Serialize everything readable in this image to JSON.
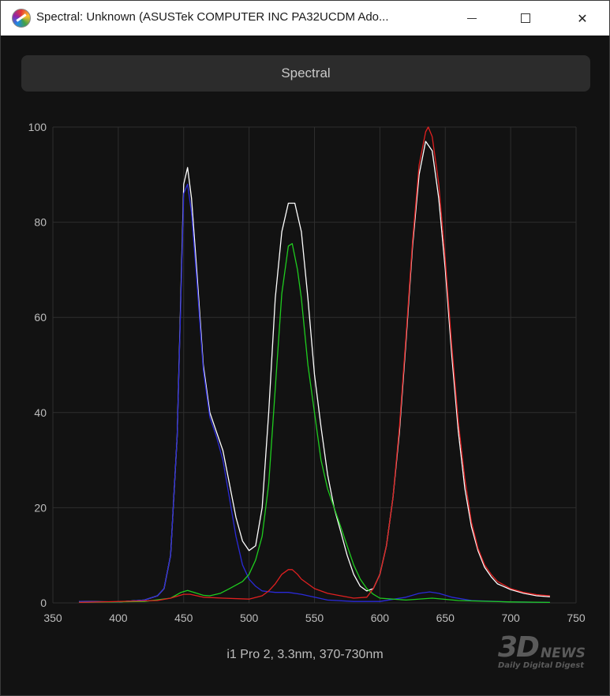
{
  "window": {
    "title": "Spectral: Unknown (ASUSTek COMPUTER INC PA32UCDM Ado...",
    "icon": "spectrum-app-icon",
    "controls": {
      "minimize_icon": "minimize-icon",
      "maximize_icon": "maximize-icon",
      "close_icon": "close-icon",
      "close_glyph": "✕"
    }
  },
  "mode_button": {
    "label": "Spectral"
  },
  "caption": "i1 Pro 2, 3.3nm, 370-730nm",
  "watermark": {
    "main": "3D",
    "news": "NEWS",
    "sub": "Daily Digital Digest"
  },
  "colors": {
    "background": "#121212",
    "grid": "#2e2e2e",
    "white": "#ffffff",
    "red": "#e02020",
    "green": "#1fcc1f",
    "blue": "#2a2ad8"
  },
  "chart_data": {
    "type": "line",
    "title": "",
    "xlabel": "",
    "ylabel": "",
    "xlim": [
      350,
      750
    ],
    "ylim": [
      0,
      100
    ],
    "x_ticks": [
      350,
      400,
      450,
      500,
      550,
      600,
      650,
      700,
      750
    ],
    "y_ticks": [
      0,
      20,
      40,
      60,
      80,
      100
    ],
    "grid": true,
    "legend": "none",
    "series": [
      {
        "color": "#ffffff",
        "points": [
          [
            370,
            0.3
          ],
          [
            400,
            0.2
          ],
          [
            420,
            0.6
          ],
          [
            430,
            1.5
          ],
          [
            435,
            3
          ],
          [
            440,
            10
          ],
          [
            445,
            35
          ],
          [
            450,
            88
          ],
          [
            453,
            91.5
          ],
          [
            456,
            85
          ],
          [
            460,
            70
          ],
          [
            465,
            50
          ],
          [
            470,
            40
          ],
          [
            475,
            36
          ],
          [
            480,
            32
          ],
          [
            485,
            25
          ],
          [
            490,
            18
          ],
          [
            495,
            13
          ],
          [
            500,
            11
          ],
          [
            505,
            12
          ],
          [
            510,
            20
          ],
          [
            515,
            40
          ],
          [
            520,
            64
          ],
          [
            525,
            78
          ],
          [
            530,
            84
          ],
          [
            535,
            84
          ],
          [
            540,
            78
          ],
          [
            545,
            64
          ],
          [
            550,
            48
          ],
          [
            555,
            37
          ],
          [
            560,
            27
          ],
          [
            565,
            20
          ],
          [
            570,
            15
          ],
          [
            575,
            10
          ],
          [
            580,
            6
          ],
          [
            585,
            3.5
          ],
          [
            590,
            2.5
          ],
          [
            595,
            3
          ],
          [
            600,
            6
          ],
          [
            605,
            12
          ],
          [
            610,
            22
          ],
          [
            615,
            36
          ],
          [
            620,
            55
          ],
          [
            625,
            75
          ],
          [
            630,
            90
          ],
          [
            635,
            97
          ],
          [
            640,
            95
          ],
          [
            645,
            85
          ],
          [
            650,
            70
          ],
          [
            655,
            52
          ],
          [
            660,
            36
          ],
          [
            665,
            24
          ],
          [
            670,
            16
          ],
          [
            675,
            11
          ],
          [
            680,
            7.5
          ],
          [
            685,
            5.5
          ],
          [
            690,
            4
          ],
          [
            700,
            2.8
          ],
          [
            710,
            2
          ],
          [
            720,
            1.5
          ],
          [
            730,
            1.3
          ]
        ]
      },
      {
        "color": "#2a2ad8",
        "points": [
          [
            370,
            0.3
          ],
          [
            400,
            0.2
          ],
          [
            420,
            0.6
          ],
          [
            430,
            1.5
          ],
          [
            435,
            3
          ],
          [
            440,
            10
          ],
          [
            445,
            35
          ],
          [
            450,
            86
          ],
          [
            453,
            88
          ],
          [
            456,
            82
          ],
          [
            460,
            68
          ],
          [
            465,
            49
          ],
          [
            470,
            39
          ],
          [
            475,
            35
          ],
          [
            480,
            30
          ],
          [
            485,
            22
          ],
          [
            490,
            14
          ],
          [
            495,
            8
          ],
          [
            500,
            5
          ],
          [
            505,
            3.5
          ],
          [
            510,
            2.5
          ],
          [
            520,
            2.2
          ],
          [
            530,
            2.2
          ],
          [
            540,
            1.8
          ],
          [
            550,
            1.2
          ],
          [
            560,
            0.6
          ],
          [
            580,
            0.3
          ],
          [
            600,
            0.3
          ],
          [
            620,
            1.2
          ],
          [
            630,
            2
          ],
          [
            638,
            2.3
          ],
          [
            645,
            2
          ],
          [
            655,
            1.2
          ],
          [
            670,
            0.5
          ],
          [
            700,
            0.2
          ],
          [
            730,
            0.1
          ]
        ]
      },
      {
        "color": "#1fcc1f",
        "points": [
          [
            370,
            0.1
          ],
          [
            420,
            0.3
          ],
          [
            440,
            1
          ],
          [
            448,
            2.2
          ],
          [
            453,
            2.6
          ],
          [
            458,
            2.2
          ],
          [
            465,
            1.6
          ],
          [
            470,
            1.5
          ],
          [
            478,
            2
          ],
          [
            485,
            3
          ],
          [
            495,
            4.5
          ],
          [
            500,
            6
          ],
          [
            505,
            9
          ],
          [
            510,
            14
          ],
          [
            515,
            25
          ],
          [
            520,
            45
          ],
          [
            525,
            65
          ],
          [
            530,
            75
          ],
          [
            533,
            75.5
          ],
          [
            537,
            70
          ],
          [
            540,
            64
          ],
          [
            545,
            50
          ],
          [
            550,
            40
          ],
          [
            555,
            30
          ],
          [
            560,
            24
          ],
          [
            565,
            20
          ],
          [
            570,
            16
          ],
          [
            575,
            12
          ],
          [
            580,
            8
          ],
          [
            585,
            5
          ],
          [
            590,
            3
          ],
          [
            595,
            1.8
          ],
          [
            600,
            1
          ],
          [
            620,
            0.6
          ],
          [
            640,
            1
          ],
          [
            660,
            0.5
          ],
          [
            700,
            0.2
          ],
          [
            730,
            0.1
          ]
        ]
      },
      {
        "color": "#e02020",
        "points": [
          [
            370,
            0.1
          ],
          [
            430,
            0.5
          ],
          [
            440,
            1
          ],
          [
            450,
            1.8
          ],
          [
            455,
            1.8
          ],
          [
            465,
            1.2
          ],
          [
            480,
            1
          ],
          [
            500,
            0.8
          ],
          [
            510,
            1.5
          ],
          [
            515,
            2.5
          ],
          [
            520,
            4
          ],
          [
            525,
            6
          ],
          [
            530,
            7
          ],
          [
            533,
            7
          ],
          [
            537,
            6
          ],
          [
            540,
            5
          ],
          [
            545,
            4
          ],
          [
            550,
            3
          ],
          [
            560,
            2
          ],
          [
            570,
            1.5
          ],
          [
            580,
            1
          ],
          [
            590,
            1.2
          ],
          [
            595,
            3
          ],
          [
            600,
            6
          ],
          [
            605,
            12
          ],
          [
            610,
            22
          ],
          [
            615,
            37
          ],
          [
            620,
            56
          ],
          [
            625,
            76
          ],
          [
            630,
            92
          ],
          [
            635,
            99
          ],
          [
            637,
            100
          ],
          [
            640,
            98
          ],
          [
            645,
            88
          ],
          [
            650,
            72
          ],
          [
            655,
            54
          ],
          [
            660,
            38
          ],
          [
            665,
            26
          ],
          [
            670,
            17
          ],
          [
            675,
            11.5
          ],
          [
            680,
            8
          ],
          [
            685,
            6
          ],
          [
            690,
            4.5
          ],
          [
            700,
            3
          ],
          [
            710,
            2.2
          ],
          [
            720,
            1.7
          ],
          [
            730,
            1.5
          ]
        ]
      }
    ]
  }
}
